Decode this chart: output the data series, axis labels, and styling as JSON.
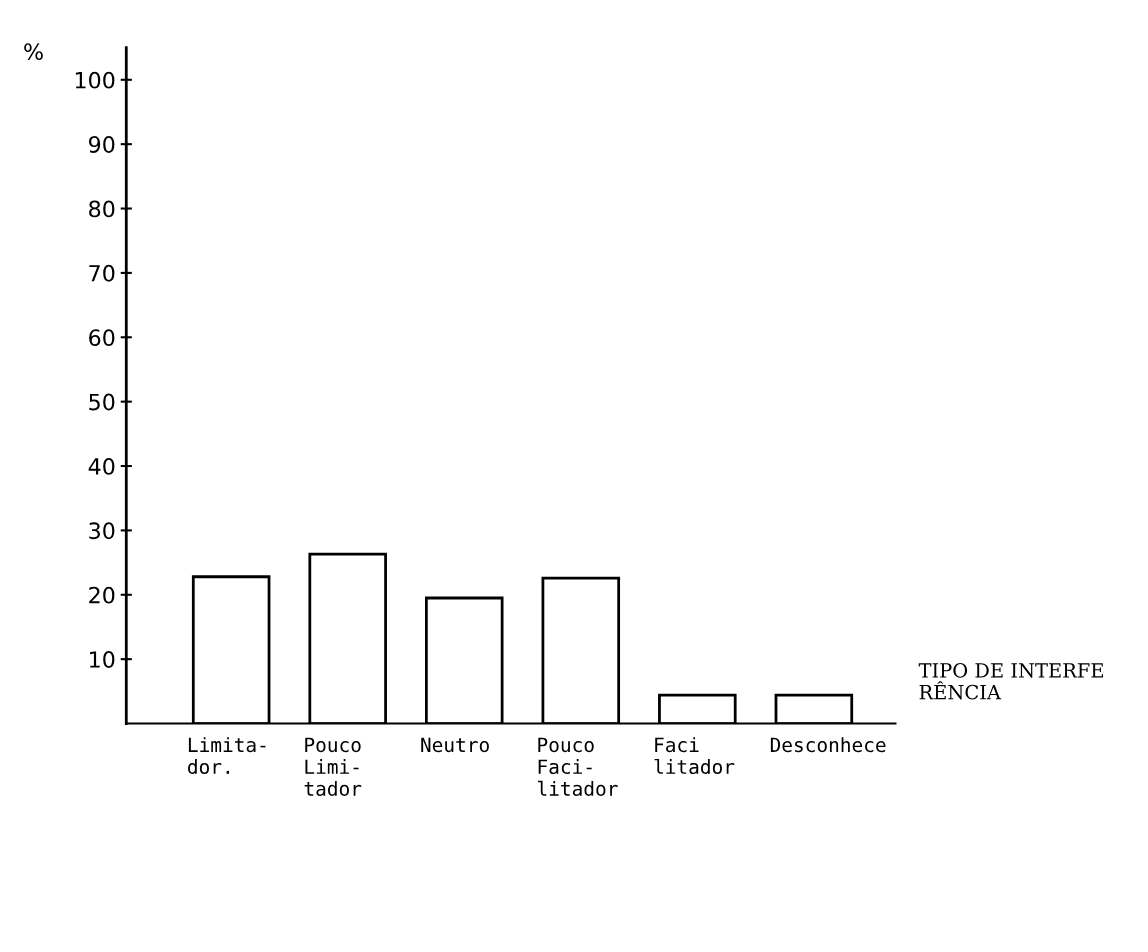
{
  "chart_data": {
    "type": "bar",
    "ylabel": "%",
    "xlabel": "TIPO DE INTERFE\nRÊNCIA",
    "categories": [
      "Limita-\ndor.",
      "Pouco\nLimi-\ntador",
      "Neutro",
      "Pouco\nFaci-\nlitador",
      "Faci\nlitador",
      "Desconhece"
    ],
    "values": [
      22.8,
      26.3,
      19.5,
      22.6,
      4.4,
      4.4
    ],
    "color": "#ffffff",
    "ylim": [
      0,
      105
    ],
    "yticks": [
      10,
      20,
      30,
      40,
      50,
      60,
      70,
      80,
      90,
      100
    ],
    "grid": false
  }
}
